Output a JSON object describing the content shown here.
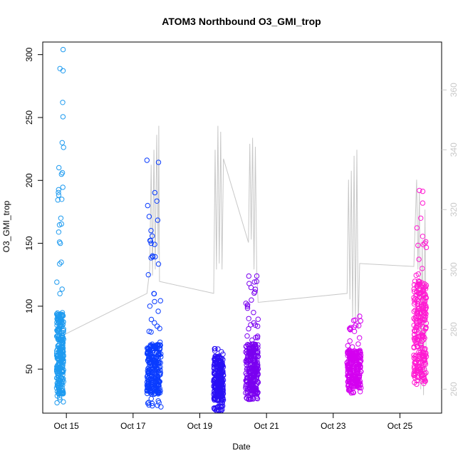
{
  "chart_data": {
    "type": "scatter",
    "title": "ATOM3 Northbound O3_GMI_trop",
    "xlabel": "Date",
    "ylabel": "O3_GMI_trop",
    "xlim": [
      "2017-10-14T07:00",
      "2017-10-26T06:00"
    ],
    "ylim": [
      15,
      310
    ],
    "y2lim": [
      252,
      376
    ],
    "x_ticks": [
      {
        "date": "2017-10-15T00:00",
        "label": "Oct 15"
      },
      {
        "date": "2017-10-17T00:00",
        "label": "Oct 17"
      },
      {
        "date": "2017-10-19T00:00",
        "label": "Oct 19"
      },
      {
        "date": "2017-10-21T00:00",
        "label": "Oct 21"
      },
      {
        "date": "2017-10-23T00:00",
        "label": "Oct 23"
      },
      {
        "date": "2017-10-25T00:00",
        "label": "Oct 25"
      }
    ],
    "y_ticks": [
      50,
      100,
      150,
      200,
      250,
      300
    ],
    "y2_ticks": [
      260,
      280,
      300,
      320,
      340,
      360
    ],
    "grid": false,
    "series": [
      {
        "color": "#1e9bf0",
        "t_start": "2017-10-14T17:00",
        "t_end": "2017-10-14T22:00",
        "y_min": 23,
        "y_max": 304,
        "y_typical": [
          30,
          95
        ],
        "points": [
          {
            "x": "2017-10-14T17:00",
            "y": 35
          },
          {
            "x": "2017-10-14T17:20",
            "y": 60
          },
          {
            "x": "2017-10-14T17:40",
            "y": 92
          },
          {
            "x": "2017-10-14T18:00",
            "y": 48
          },
          {
            "x": "2017-10-14T18:20",
            "y": 75
          },
          {
            "x": "2017-10-14T18:40",
            "y": 30
          },
          {
            "x": "2017-10-14T19:00",
            "y": 55
          },
          {
            "x": "2017-10-14T19:20",
            "y": 110
          },
          {
            "x": "2017-10-14T19:40",
            "y": 150
          },
          {
            "x": "2017-10-14T20:00",
            "y": 170
          },
          {
            "x": "2017-10-14T20:20",
            "y": 135
          },
          {
            "x": "2017-10-14T20:40",
            "y": 185
          },
          {
            "x": "2017-10-14T21:00",
            "y": 230
          },
          {
            "x": "2017-10-14T21:20",
            "y": 262
          },
          {
            "x": "2017-10-14T21:40",
            "y": 304
          },
          {
            "x": "2017-10-14T21:50",
            "y": 24
          },
          {
            "x": "2017-10-14T22:00",
            "y": 40
          }
        ]
      },
      {
        "color": "#0a3cff",
        "t_start": "2017-10-17T10:00",
        "t_end": "2017-10-17T20:00",
        "y_min": 20,
        "y_max": 216,
        "y_typical": [
          30,
          70
        ],
        "points": [
          {
            "x": "2017-10-17T10:00",
            "y": 216
          },
          {
            "x": "2017-10-17T10:30",
            "y": 180
          },
          {
            "x": "2017-10-17T11:00",
            "y": 125
          },
          {
            "x": "2017-10-17T11:30",
            "y": 80
          },
          {
            "x": "2017-10-17T12:00",
            "y": 45
          },
          {
            "x": "2017-10-17T13:00",
            "y": 150
          },
          {
            "x": "2017-10-17T14:00",
            "y": 140
          },
          {
            "x": "2017-10-17T15:00",
            "y": 110
          },
          {
            "x": "2017-10-17T16:00",
            "y": 68
          },
          {
            "x": "2017-10-17T17:00",
            "y": 60
          },
          {
            "x": "2017-10-17T18:00",
            "y": 40
          },
          {
            "x": "2017-10-17T19:00",
            "y": 66
          },
          {
            "x": "2017-10-17T20:00",
            "y": 20
          }
        ]
      },
      {
        "color": "#2a10f5",
        "t_start": "2017-10-19T10:00",
        "t_end": "2017-10-19T17:00",
        "y_min": 17,
        "y_max": 67,
        "y_typical": [
          25,
          60
        ],
        "points": [
          {
            "x": "2017-10-19T10:00",
            "y": 30
          },
          {
            "x": "2017-10-19T11:00",
            "y": 60
          },
          {
            "x": "2017-10-19T12:00",
            "y": 17
          },
          {
            "x": "2017-10-19T13:00",
            "y": 66
          },
          {
            "x": "2017-10-19T14:00",
            "y": 40
          },
          {
            "x": "2017-10-19T15:00",
            "y": 55
          },
          {
            "x": "2017-10-19T16:00",
            "y": 25
          },
          {
            "x": "2017-10-19T17:00",
            "y": 45
          }
        ]
      },
      {
        "color": "#7a00f0",
        "t_start": "2017-10-20T09:00",
        "t_end": "2017-10-20T18:00",
        "y_min": 26,
        "y_max": 124,
        "y_typical": [
          30,
          70
        ],
        "points": [
          {
            "x": "2017-10-20T09:00",
            "y": 35
          },
          {
            "x": "2017-10-20T10:00",
            "y": 58
          },
          {
            "x": "2017-10-20T11:00",
            "y": 26
          },
          {
            "x": "2017-10-20T12:00",
            "y": 50
          },
          {
            "x": "2017-10-20T13:00",
            "y": 40
          },
          {
            "x": "2017-10-20T14:00",
            "y": 70
          },
          {
            "x": "2017-10-20T15:00",
            "y": 45
          },
          {
            "x": "2017-10-20T16:00",
            "y": 85
          },
          {
            "x": "2017-10-20T17:00",
            "y": 124
          },
          {
            "x": "2017-10-20T18:00",
            "y": 60
          }
        ]
      },
      {
        "color": "#d400f0",
        "t_start": "2017-10-23T10:00",
        "t_end": "2017-10-23T20:00",
        "y_min": 31,
        "y_max": 92,
        "y_typical": [
          35,
          65
        ],
        "points": [
          {
            "x": "2017-10-23T10:00",
            "y": 55
          },
          {
            "x": "2017-10-23T11:00",
            "y": 38
          },
          {
            "x": "2017-10-23T12:00",
            "y": 63
          },
          {
            "x": "2017-10-23T13:00",
            "y": 31
          },
          {
            "x": "2017-10-23T14:00",
            "y": 58
          },
          {
            "x": "2017-10-23T15:00",
            "y": 42
          },
          {
            "x": "2017-10-23T16:00",
            "y": 62
          },
          {
            "x": "2017-10-23T17:00",
            "y": 50
          },
          {
            "x": "2017-10-23T18:00",
            "y": 70
          },
          {
            "x": "2017-10-23T19:00",
            "y": 92
          },
          {
            "x": "2017-10-23T20:00",
            "y": 48
          }
        ]
      },
      {
        "color": "#ff1ad2",
        "t_start": "2017-10-25T10:00",
        "t_end": "2017-10-25T19:00",
        "y_min": 37,
        "y_max": 192,
        "y_typical": [
          40,
          120
        ],
        "points": [
          {
            "x": "2017-10-25T10:00",
            "y": 45
          },
          {
            "x": "2017-10-25T11:00",
            "y": 60
          },
          {
            "x": "2017-10-25T12:00",
            "y": 38
          },
          {
            "x": "2017-10-25T13:00",
            "y": 100
          },
          {
            "x": "2017-10-25T14:00",
            "y": 192
          },
          {
            "x": "2017-10-25T15:00",
            "y": 170
          },
          {
            "x": "2017-10-25T16:00",
            "y": 130
          },
          {
            "x": "2017-10-25T17:00",
            "y": 95
          },
          {
            "x": "2017-10-25T18:00",
            "y": 150
          },
          {
            "x": "2017-10-25T19:00",
            "y": 60
          }
        ]
      }
    ],
    "overlay_line": {
      "color": "#c8c8c8",
      "axis": "right",
      "points": [
        {
          "x": "2017-10-14T21:30",
          "y": 278
        },
        {
          "x": "2017-10-17T10:00",
          "y": 292
        },
        {
          "x": "2017-10-17T12:00",
          "y": 300
        },
        {
          "x": "2017-10-17T13:00",
          "y": 335
        },
        {
          "x": "2017-10-17T14:00",
          "y": 298
        },
        {
          "x": "2017-10-17T15:00",
          "y": 340
        },
        {
          "x": "2017-10-17T16:00",
          "y": 300
        },
        {
          "x": "2017-10-17T17:00",
          "y": 345
        },
        {
          "x": "2017-10-17T18:00",
          "y": 305
        },
        {
          "x": "2017-10-17T18:30",
          "y": 348
        },
        {
          "x": "2017-10-17T19:00",
          "y": 296
        },
        {
          "x": "2017-10-19T10:00",
          "y": 292
        },
        {
          "x": "2017-10-19T11:00",
          "y": 340
        },
        {
          "x": "2017-10-19T12:00",
          "y": 300
        },
        {
          "x": "2017-10-19T13:00",
          "y": 348
        },
        {
          "x": "2017-10-19T14:00",
          "y": 302
        },
        {
          "x": "2017-10-19T15:00",
          "y": 346
        },
        {
          "x": "2017-10-19T16:00",
          "y": 300
        },
        {
          "x": "2017-10-19T17:00",
          "y": 337
        },
        {
          "x": "2017-10-20T11:00",
          "y": 309
        },
        {
          "x": "2017-10-20T12:00",
          "y": 342
        },
        {
          "x": "2017-10-20T13:00",
          "y": 310
        },
        {
          "x": "2017-10-20T14:00",
          "y": 344
        },
        {
          "x": "2017-10-20T15:00",
          "y": 300
        },
        {
          "x": "2017-10-20T16:00",
          "y": 341
        },
        {
          "x": "2017-10-20T17:00",
          "y": 298
        },
        {
          "x": "2017-10-20T18:00",
          "y": 289
        },
        {
          "x": "2017-10-23T10:00",
          "y": 292
        },
        {
          "x": "2017-10-23T11:00",
          "y": 330
        },
        {
          "x": "2017-10-23T12:00",
          "y": 290
        },
        {
          "x": "2017-10-23T13:00",
          "y": 333
        },
        {
          "x": "2017-10-23T14:00",
          "y": 284
        },
        {
          "x": "2017-10-23T15:00",
          "y": 338
        },
        {
          "x": "2017-10-23T16:00",
          "y": 282
        },
        {
          "x": "2017-10-23T17:00",
          "y": 340
        },
        {
          "x": "2017-10-23T18:00",
          "y": 280
        },
        {
          "x": "2017-10-23T19:00",
          "y": 302
        },
        {
          "x": "2017-10-25T10:00",
          "y": 301
        },
        {
          "x": "2017-10-25T12:00",
          "y": 330
        },
        {
          "x": "2017-10-25T13:00",
          "y": 300
        },
        {
          "x": "2017-10-25T14:00",
          "y": 326
        },
        {
          "x": "2017-10-25T15:00",
          "y": 260
        },
        {
          "x": "2017-10-25T16:00",
          "y": 310
        },
        {
          "x": "2017-10-25T17:00",
          "y": 258
        },
        {
          "x": "2017-10-25T18:00",
          "y": 320
        },
        {
          "x": "2017-10-25T19:00",
          "y": 262
        }
      ]
    }
  }
}
